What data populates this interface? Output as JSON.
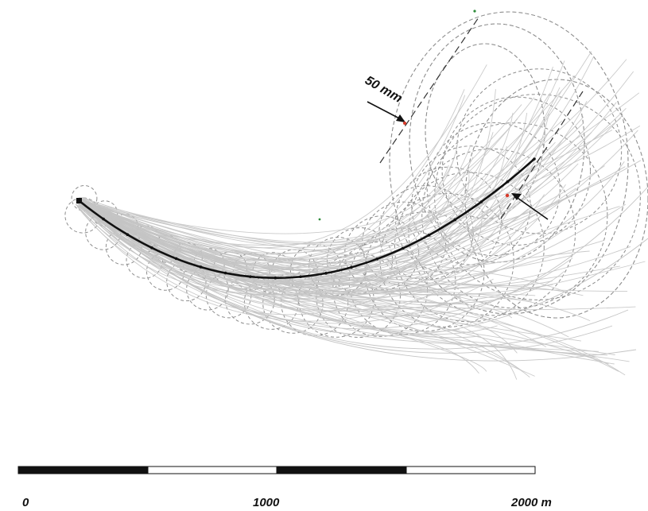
{
  "annotation": {
    "text": "50 mm"
  },
  "scale_bar": {
    "labels": [
      "0",
      "1000",
      "2000 m"
    ]
  },
  "colors": {
    "ensemble_tracks": "#c4c4c4",
    "observed_track": "#111111",
    "uncertainty_circles": "#8e8e8e",
    "scale_dark": "#111111",
    "scale_light": "#ffffff",
    "accent_red": "#d83a2a",
    "accent_green": "#2e8b3a"
  }
}
